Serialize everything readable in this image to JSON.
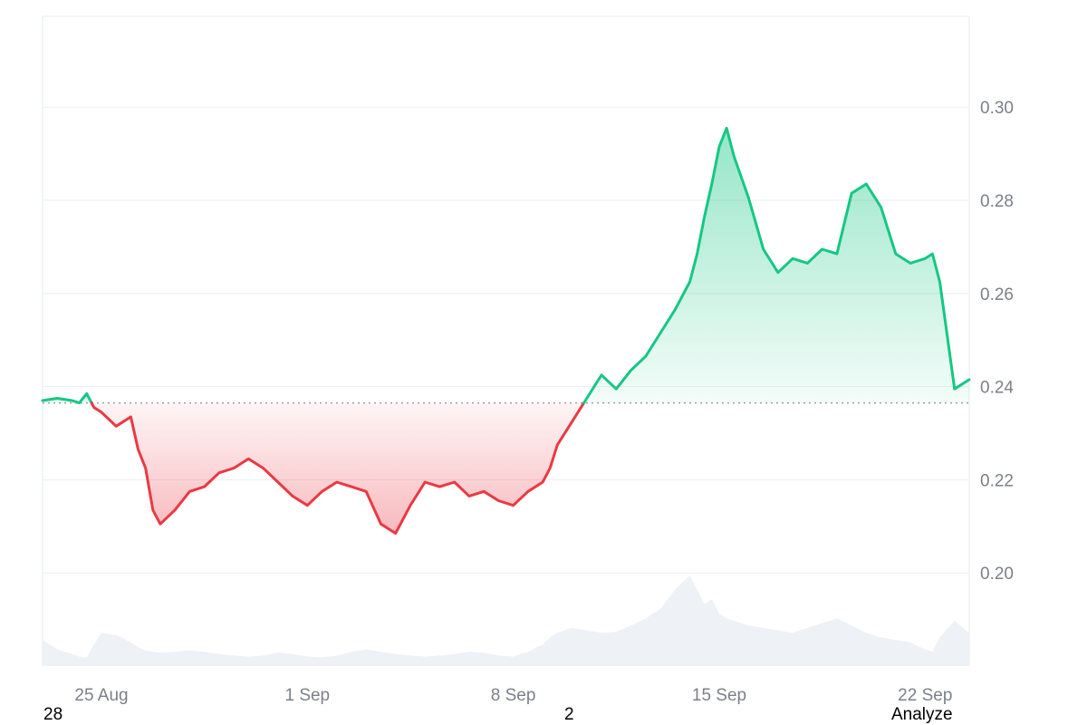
{
  "chart_data": {
    "type": "area",
    "baseline_value": 0.2365,
    "ylim": [
      0.18,
      0.3195
    ],
    "xlim": [
      "2025-08-23 00:00",
      "2025-09-23 12:00"
    ],
    "ytick_values": [
      0.3,
      0.28,
      0.26,
      0.24,
      0.22,
      0.2
    ],
    "ytick_labels": [
      "0.30",
      "0.28",
      "0.26",
      "0.24",
      "0.22",
      "0.20"
    ],
    "xtick_dates": [
      "2025-08-25 00:00",
      "2025-09-01 00:00",
      "2025-09-08 00:00",
      "2025-09-15 00:00",
      "2025-09-22 00:00"
    ],
    "xtick_labels": [
      "25 Aug",
      "1 Sep",
      "8 Sep",
      "15 Sep",
      "22 Sep"
    ],
    "grid": "horizontal",
    "colors": {
      "up": "#16c784",
      "down": "#ea3943",
      "baseline": "#9aa0a6",
      "grid": "#eceef1",
      "volume": "#eef1f5"
    },
    "x": [
      "2025-08-23 00:00",
      "2025-08-23 12:00",
      "2025-08-24 00:00",
      "2025-08-24 06:00",
      "2025-08-24 12:00",
      "2025-08-24 18:00",
      "2025-08-25 00:00",
      "2025-08-25 12:00",
      "2025-08-26 00:00",
      "2025-08-26 06:00",
      "2025-08-26 12:00",
      "2025-08-26 18:00",
      "2025-08-27 00:00",
      "2025-08-27 12:00",
      "2025-08-28 00:00",
      "2025-08-28 12:00",
      "2025-08-29 00:00",
      "2025-08-29 12:00",
      "2025-08-30 00:00",
      "2025-08-30 12:00",
      "2025-08-31 00:00",
      "2025-08-31 12:00",
      "2025-09-01 00:00",
      "2025-09-01 12:00",
      "2025-09-02 00:00",
      "2025-09-02 12:00",
      "2025-09-03 00:00",
      "2025-09-03 12:00",
      "2025-09-04 00:00",
      "2025-09-04 12:00",
      "2025-09-05 00:00",
      "2025-09-05 12:00",
      "2025-09-06 00:00",
      "2025-09-06 12:00",
      "2025-09-07 00:00",
      "2025-09-07 12:00",
      "2025-09-08 00:00",
      "2025-09-08 12:00",
      "2025-09-09 00:00",
      "2025-09-09 06:00",
      "2025-09-09 12:00",
      "2025-09-10 00:00",
      "2025-09-10 12:00",
      "2025-09-11 00:00",
      "2025-09-11 12:00",
      "2025-09-12 00:00",
      "2025-09-12 12:00",
      "2025-09-13 00:00",
      "2025-09-13 12:00",
      "2025-09-14 00:00",
      "2025-09-14 06:00",
      "2025-09-14 12:00",
      "2025-09-14 18:00",
      "2025-09-15 00:00",
      "2025-09-15 06:00",
      "2025-09-15 12:00",
      "2025-09-16 00:00",
      "2025-09-16 12:00",
      "2025-09-17 00:00",
      "2025-09-17 12:00",
      "2025-09-18 00:00",
      "2025-09-18 12:00",
      "2025-09-19 00:00",
      "2025-09-19 12:00",
      "2025-09-20 00:00",
      "2025-09-20 12:00",
      "2025-09-21 00:00",
      "2025-09-21 12:00",
      "2025-09-22 00:00",
      "2025-09-22 06:00",
      "2025-09-22 12:00",
      "2025-09-23 00:00",
      "2025-09-23 12:00"
    ],
    "values": [
      0.237,
      0.2375,
      0.237,
      0.2365,
      0.2385,
      0.2355,
      0.2345,
      0.2315,
      0.2335,
      0.2265,
      0.2225,
      0.2135,
      0.2105,
      0.2135,
      0.2175,
      0.2185,
      0.2215,
      0.2225,
      0.2245,
      0.2225,
      0.2195,
      0.2165,
      0.2145,
      0.2175,
      0.2195,
      0.2185,
      0.2175,
      0.2105,
      0.2085,
      0.2145,
      0.2195,
      0.2185,
      0.2195,
      0.2165,
      0.2175,
      0.2155,
      0.2145,
      0.2175,
      0.2195,
      0.2225,
      0.2275,
      0.2325,
      0.2375,
      0.2425,
      0.2395,
      0.2435,
      0.2465,
      0.2515,
      0.2565,
      0.2625,
      0.2685,
      0.2765,
      0.2835,
      0.2915,
      0.2955,
      0.2895,
      0.2805,
      0.2695,
      0.2645,
      0.2675,
      0.2665,
      0.2695,
      0.2685,
      0.2815,
      0.2835,
      0.2785,
      0.2685,
      0.2665,
      0.2675,
      0.2685,
      0.2625,
      0.2395,
      0.2415
    ],
    "volume": [
      0.55,
      0.35,
      0.25,
      0.2,
      0.18,
      0.45,
      0.7,
      0.65,
      0.5,
      0.4,
      0.33,
      0.3,
      0.28,
      0.3,
      0.33,
      0.3,
      0.25,
      0.22,
      0.2,
      0.22,
      0.28,
      0.25,
      0.2,
      0.18,
      0.22,
      0.3,
      0.35,
      0.3,
      0.25,
      0.22,
      0.2,
      0.22,
      0.25,
      0.3,
      0.28,
      0.22,
      0.2,
      0.3,
      0.45,
      0.6,
      0.7,
      0.8,
      0.75,
      0.7,
      0.72,
      0.85,
      1.0,
      1.2,
      1.6,
      1.9,
      1.6,
      1.3,
      1.4,
      1.1,
      1.0,
      0.95,
      0.85,
      0.8,
      0.75,
      0.7,
      0.8,
      0.9,
      1.0,
      0.85,
      0.7,
      0.6,
      0.55,
      0.5,
      0.35,
      0.3,
      0.6,
      0.95,
      0.7
    ]
  },
  "footer": {
    "left": "28",
    "middle": "2",
    "right": "Analyze"
  }
}
